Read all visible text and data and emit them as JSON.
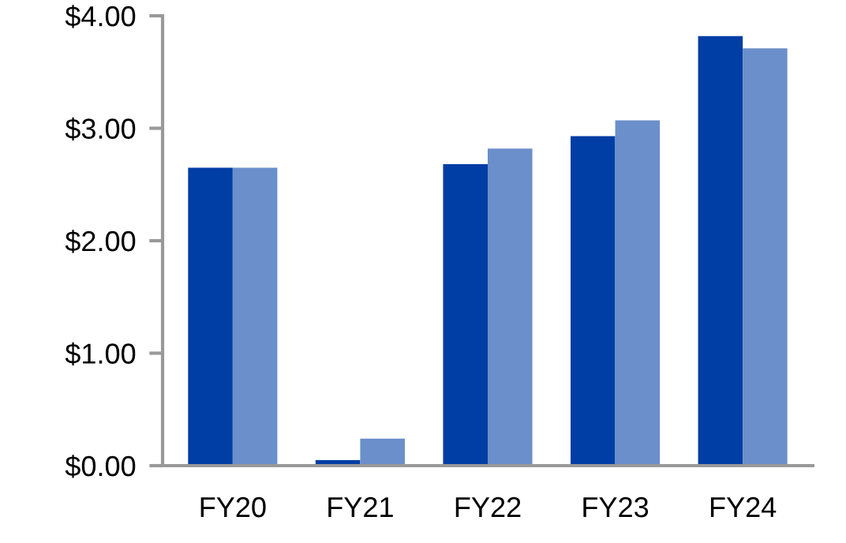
{
  "chart_data": {
    "type": "bar",
    "categories": [
      "FY20",
      "FY21",
      "FY22",
      "FY23",
      "FY24"
    ],
    "series": [
      {
        "color": "#003da5",
        "values": [
          2.65,
          0.05,
          2.68,
          2.93,
          3.82
        ]
      },
      {
        "color": "#6a8fca",
        "values": [
          2.65,
          0.24,
          2.82,
          3.07,
          3.71
        ]
      }
    ],
    "ylim": [
      0,
      4
    ],
    "yticks": [
      {
        "value": 0,
        "label": "$0.00"
      },
      {
        "value": 1,
        "label": "$1.00"
      },
      {
        "value": 2,
        "label": "$2.00"
      },
      {
        "value": 3,
        "label": "$3.00"
      },
      {
        "value": 4,
        "label": "$4.00"
      }
    ],
    "grid": false
  }
}
